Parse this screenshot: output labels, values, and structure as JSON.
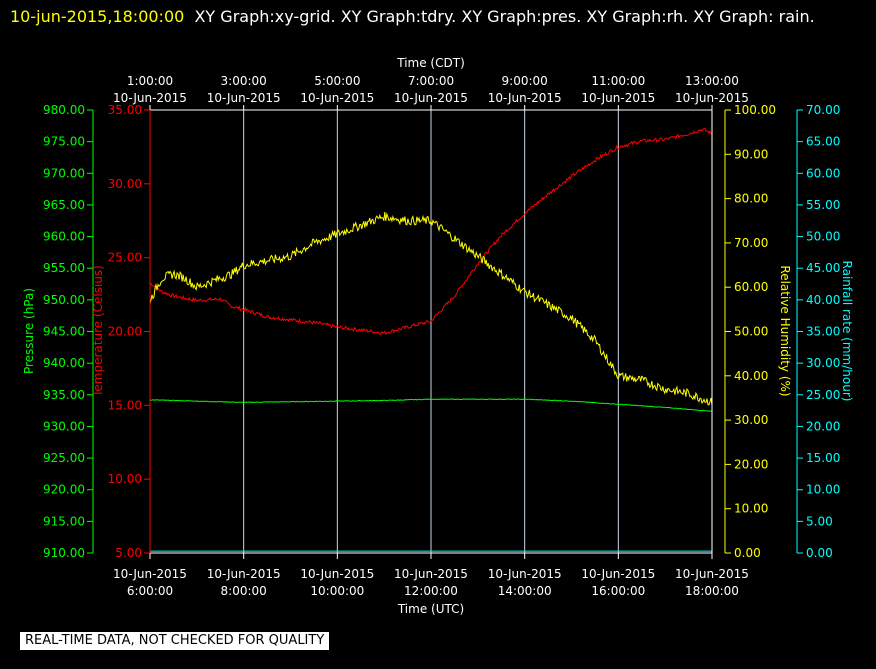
{
  "header": {
    "timestamp": "10-jun-2015,18:00:00",
    "rest": "XY Graph:xy-grid.  XY Graph:tdry.  XY Graph:pres.  XY Graph:rh.  XY Graph: rain."
  },
  "banner": "REAL-TIME DATA, NOT CHECKED FOR QUALITY",
  "colors": {
    "background": "#000000",
    "frame": "#ffffff",
    "grid": "#c8d8e8",
    "temperature": "#ff0000",
    "pressure": "#00ff00",
    "humidity": "#ffff00",
    "rain": "#00ffff"
  },
  "chart_data": {
    "type": "line",
    "x_label_bottom": "Time (UTC)",
    "x_label_top": "Time (CDT)",
    "x_ticks_bottom": [
      {
        "date": "10-Jun-2015",
        "time": "6:00:00"
      },
      {
        "date": "10-Jun-2015",
        "time": "8:00:00"
      },
      {
        "date": "10-Jun-2015",
        "time": "10:00:00"
      },
      {
        "date": "10-Jun-2015",
        "time": "12:00:00"
      },
      {
        "date": "10-Jun-2015",
        "time": "14:00:00"
      },
      {
        "date": "10-Jun-2015",
        "time": "16:00:00"
      },
      {
        "date": "10-Jun-2015",
        "time": "18:00:00"
      }
    ],
    "x_ticks_top": [
      {
        "time": "1:00:00",
        "date": "10-Jun-2015"
      },
      {
        "time": "3:00:00",
        "date": "10-Jun-2015"
      },
      {
        "time": "5:00:00",
        "date": "10-Jun-2015"
      },
      {
        "time": "7:00:00",
        "date": "10-Jun-2015"
      },
      {
        "time": "9:00:00",
        "date": "10-Jun-2015"
      },
      {
        "time": "11:00:00",
        "date": "10-Jun-2015"
      },
      {
        "time": "13:00:00",
        "date": "10-Jun-2015"
      }
    ],
    "xlim_utc_hours": [
      6,
      18
    ],
    "axes": {
      "pressure": {
        "label": "Pressure (hPa)",
        "ylim": [
          910,
          980
        ],
        "ticks": [
          "910.00",
          "915.00",
          "920.00",
          "925.00",
          "930.00",
          "935.00",
          "940.00",
          "945.00",
          "950.00",
          "955.00",
          "960.00",
          "965.00",
          "970.00",
          "975.00",
          "980.00"
        ]
      },
      "temperature": {
        "label": "Temperature (Celsius)",
        "ylim": [
          5,
          35
        ],
        "ticks": [
          "5.00",
          "10.00",
          "15.00",
          "20.00",
          "25.00",
          "30.00",
          "35.00"
        ]
      },
      "humidity": {
        "label": "Relative Humidity (%)",
        "ylim": [
          0,
          100
        ],
        "ticks": [
          "0.00",
          "10.00",
          "20.00",
          "30.00",
          "40.00",
          "50.00",
          "60.00",
          "70.00",
          "80.00",
          "90.00",
          "100.00"
        ]
      },
      "rain": {
        "label": "Rainfall rate (mm/hour)",
        "ylim": [
          0,
          70
        ],
        "ticks": [
          "0.00",
          "5.00",
          "10.00",
          "15.00",
          "20.00",
          "25.00",
          "30.00",
          "35.00",
          "40.00",
          "45.00",
          "50.00",
          "55.00",
          "60.00",
          "65.00",
          "70.00"
        ]
      }
    },
    "series": [
      {
        "axis": "temperature",
        "x": [
          6.0,
          6.25,
          6.5,
          7.0,
          7.5,
          7.75,
          8.0,
          8.5,
          9.0,
          9.5,
          10.0,
          10.5,
          11.0,
          11.5,
          12.0,
          12.5,
          13.0,
          13.5,
          14.0,
          14.5,
          15.0,
          15.5,
          16.0,
          16.5,
          17.0,
          17.5,
          17.8,
          18.0
        ],
        "y": [
          23.3,
          22.7,
          22.4,
          22.1,
          22.2,
          21.7,
          21.5,
          21.0,
          20.8,
          20.6,
          20.3,
          20.1,
          19.9,
          20.3,
          20.7,
          22.4,
          24.6,
          26.5,
          28.0,
          29.3,
          30.5,
          31.6,
          32.5,
          32.9,
          33.0,
          33.4,
          33.7,
          33.4
        ]
      },
      {
        "axis": "pressure",
        "x": [
          6,
          7,
          8,
          9,
          10,
          11,
          12,
          13,
          14,
          15,
          16,
          17,
          18
        ],
        "y": [
          934.2,
          934.0,
          933.8,
          933.9,
          934.0,
          934.1,
          934.3,
          934.3,
          934.3,
          934.0,
          933.5,
          933.0,
          932.4
        ]
      },
      {
        "axis": "humidity",
        "x": [
          6.0,
          6.25,
          6.5,
          6.75,
          7.0,
          7.25,
          7.5,
          7.75,
          8.0,
          8.5,
          9.0,
          9.5,
          10.0,
          10.5,
          11.0,
          11.5,
          12.0,
          12.5,
          13.0,
          13.5,
          14.0,
          14.5,
          15.0,
          15.5,
          15.75,
          16.0,
          16.5,
          17.0,
          17.5,
          18.0
        ],
        "y": [
          57,
          62,
          63,
          62,
          60,
          61,
          62,
          63,
          65,
          66,
          67,
          70,
          72,
          74,
          76,
          75,
          75,
          71,
          67,
          63,
          59,
          56,
          53,
          48,
          44,
          40,
          39,
          37,
          36,
          34
        ]
      },
      {
        "axis": "rain",
        "x": [
          6,
          18
        ],
        "y": [
          0.3,
          0.3
        ]
      }
    ]
  }
}
